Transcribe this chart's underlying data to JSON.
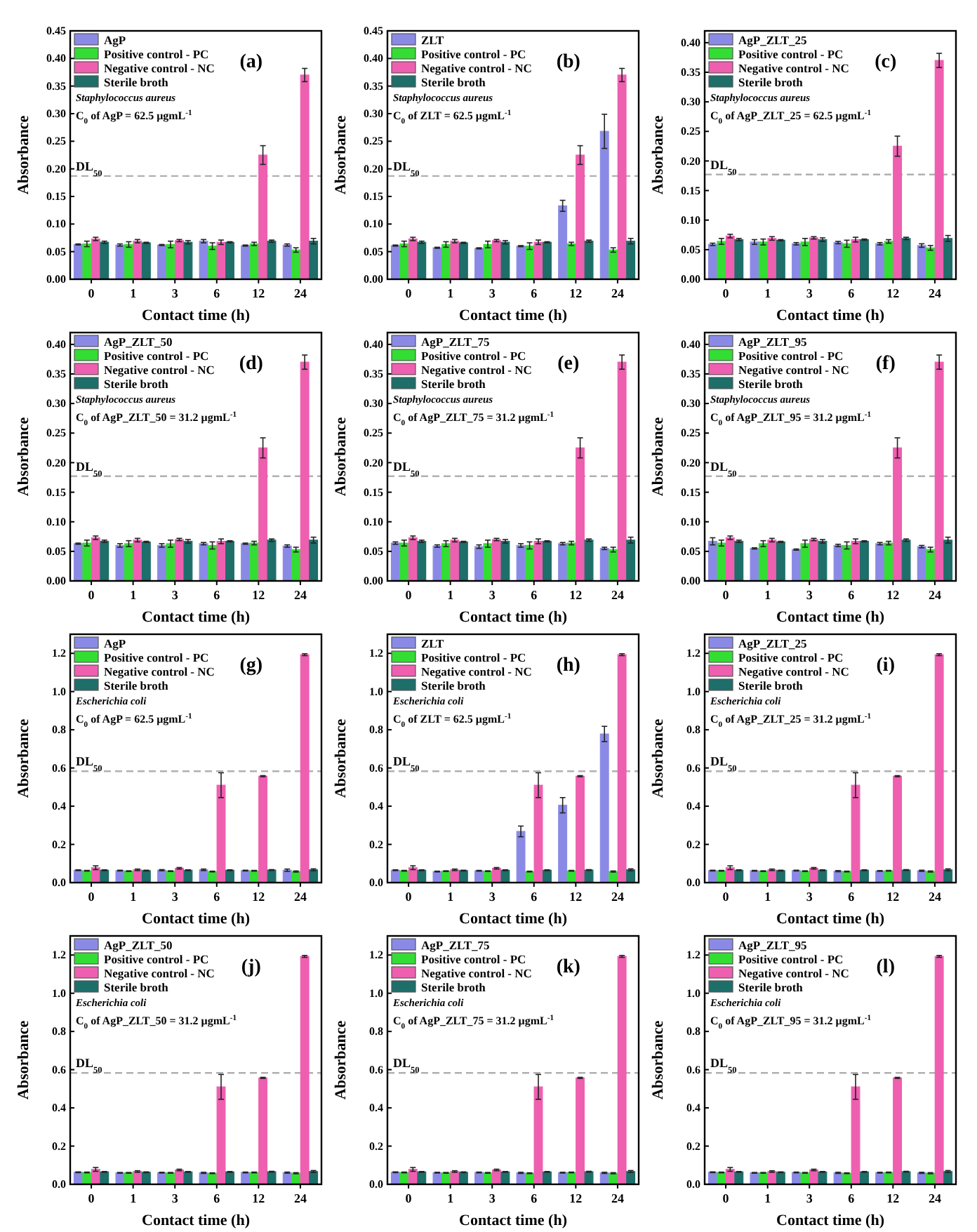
{
  "chart_data": [
    {
      "type": "bar",
      "annotations": [
        "(a)",
        "Staphylococcus aureus",
        "C$_{0}$ of AgP = 62.5 μgmL$^{-1}$"
      ],
      "xlabel": "Contact time (h)",
      "ylabel": "Absorbance",
      "categories": [
        "0",
        "1",
        "3",
        "6",
        "12",
        "24"
      ],
      "ylim": [
        0,
        0.45
      ],
      "yticks": [
        {
          "value": 0,
          "label": "0.00"
        },
        {
          "value": 0.05,
          "label": "0.05"
        },
        {
          "value": 0.1,
          "label": "0.10"
        },
        {
          "value": 0.15,
          "label": "0.15"
        },
        {
          "value": 0.2,
          "label": "0.20"
        },
        {
          "value": 0.25,
          "label": "0.25"
        },
        {
          "value": 0.3,
          "label": "0.30"
        },
        {
          "value": 0.35,
          "label": "0.35"
        },
        {
          "value": 0.4,
          "label": "0.40"
        },
        {
          "value": 0.45,
          "label": "0.45"
        }
      ],
      "legend": "top left",
      "ref_lines": [
        {
          "axis": "y",
          "value": 0.187,
          "label": "DL$_{50}$",
          "color": "#b0b0b0",
          "line_style": "dashed"
        }
      ],
      "series": [
        {
          "name": "AgP",
          "color": "#8a8ae6",
          "values": [
            0.063,
            0.062,
            0.062,
            0.069,
            0.061,
            0.062
          ],
          "errors": [
            0.001,
            0.002,
            0.001,
            0.003,
            0.001,
            0.002
          ]
        },
        {
          "name": "Positive control - PC",
          "color": "#33dd33",
          "values": [
            0.064,
            0.063,
            0.063,
            0.06,
            0.064,
            0.053
          ],
          "errors": [
            0.005,
            0.005,
            0.006,
            0.006,
            0.003,
            0.004
          ]
        },
        {
          "name": "Negative control - NC",
          "color": "#ee5fb0",
          "values": [
            0.073,
            0.069,
            0.07,
            0.067,
            0.225,
            0.37
          ],
          "errors": [
            0.003,
            0.003,
            0.002,
            0.004,
            0.017,
            0.012
          ]
        },
        {
          "name": "Sterile broth",
          "color": "#1e6e6a",
          "values": [
            0.067,
            0.066,
            0.067,
            0.067,
            0.069,
            0.069
          ],
          "errors": [
            0.002,
            0.001,
            0.003,
            0.001,
            0.002,
            0.005
          ]
        }
      ]
    },
    {
      "type": "bar",
      "annotations": [
        "(b)",
        "Staphylococcus aureus",
        "C$_{0}$ of ZLT = 62.5 μgmL$^{-1}$"
      ],
      "xlabel": "Contact time (h)",
      "ylabel": "Absorbance",
      "categories": [
        "0",
        "1",
        "3",
        "6",
        "12",
        "24"
      ],
      "ylim": [
        0,
        0.45
      ],
      "yticks": [
        {
          "value": 0,
          "label": "0.00"
        },
        {
          "value": 0.05,
          "label": "0.05"
        },
        {
          "value": 0.1,
          "label": "0.10"
        },
        {
          "value": 0.15,
          "label": "0.15"
        },
        {
          "value": 0.2,
          "label": "0.20"
        },
        {
          "value": 0.25,
          "label": "0.25"
        },
        {
          "value": 0.3,
          "label": "0.30"
        },
        {
          "value": 0.35,
          "label": "0.35"
        },
        {
          "value": 0.4,
          "label": "0.40"
        },
        {
          "value": 0.45,
          "label": "0.45"
        }
      ],
      "legend": "top left",
      "ref_lines": [
        {
          "axis": "y",
          "value": 0.187,
          "label": "DL$_{50}$",
          "color": "#b0b0b0",
          "line_style": "dashed"
        }
      ],
      "series": [
        {
          "name": "ZLT",
          "color": "#8a8ae6",
          "values": [
            0.061,
            0.057,
            0.056,
            0.06,
            0.133,
            0.268
          ],
          "errors": [
            0.001,
            0.001,
            0.001,
            0.001,
            0.01,
            0.031
          ]
        },
        {
          "name": "Positive control - PC",
          "color": "#33dd33",
          "values": [
            0.064,
            0.063,
            0.063,
            0.06,
            0.064,
            0.053
          ],
          "errors": [
            0.005,
            0.005,
            0.006,
            0.006,
            0.003,
            0.004
          ]
        },
        {
          "name": "Negative control - NC",
          "color": "#ee5fb0",
          "values": [
            0.073,
            0.069,
            0.07,
            0.067,
            0.225,
            0.37
          ],
          "errors": [
            0.003,
            0.003,
            0.002,
            0.004,
            0.017,
            0.012
          ]
        },
        {
          "name": "Sterile broth",
          "color": "#1e6e6a",
          "values": [
            0.067,
            0.066,
            0.067,
            0.067,
            0.069,
            0.069
          ],
          "errors": [
            0.002,
            0.001,
            0.003,
            0.001,
            0.002,
            0.005
          ]
        }
      ]
    },
    {
      "type": "bar",
      "annotations": [
        "(c)",
        "Staphylococcus aureus",
        "C$_{0}$ of AgP_ZLT_25 = 62.5 μgmL$^{-1}$"
      ],
      "xlabel": "Contact time (h)",
      "ylabel": "Absorbance",
      "categories": [
        "0",
        "1",
        "3",
        "6",
        "12",
        "24"
      ],
      "ylim": [
        0,
        0.42
      ],
      "yticks": [
        {
          "value": 0,
          "label": "0.00"
        },
        {
          "value": 0.05,
          "label": "0.05"
        },
        {
          "value": 0.1,
          "label": "0.10"
        },
        {
          "value": 0.15,
          "label": "0.15"
        },
        {
          "value": 0.2,
          "label": "0.20"
        },
        {
          "value": 0.25,
          "label": "0.25"
        },
        {
          "value": 0.3,
          "label": "0.30"
        },
        {
          "value": 0.35,
          "label": "0.35"
        },
        {
          "value": 0.4,
          "label": "0.40"
        }
      ],
      "legend": "top left",
      "ref_lines": [
        {
          "axis": "y",
          "value": 0.177,
          "label": "DL$_{50}$",
          "color": "#b0b0b0",
          "line_style": "dashed"
        }
      ],
      "series": [
        {
          "name": "AgP_ZLT_25",
          "color": "#8a8ae6",
          "values": [
            0.059,
            0.063,
            0.06,
            0.062,
            0.06,
            0.057
          ],
          "errors": [
            0.002,
            0.004,
            0.002,
            0.002,
            0.002,
            0.003
          ]
        },
        {
          "name": "Positive control - PC",
          "color": "#33dd33",
          "values": [
            0.064,
            0.063,
            0.063,
            0.06,
            0.064,
            0.053
          ],
          "errors": [
            0.005,
            0.005,
            0.006,
            0.006,
            0.003,
            0.004
          ]
        },
        {
          "name": "Negative control - NC",
          "color": "#ee5fb0",
          "values": [
            0.073,
            0.069,
            0.07,
            0.067,
            0.225,
            0.37
          ],
          "errors": [
            0.003,
            0.003,
            0.002,
            0.004,
            0.017,
            0.012
          ]
        },
        {
          "name": "Sterile broth",
          "color": "#1e6e6a",
          "values": [
            0.067,
            0.066,
            0.067,
            0.067,
            0.069,
            0.069
          ],
          "errors": [
            0.002,
            0.001,
            0.003,
            0.001,
            0.002,
            0.005
          ]
        }
      ]
    },
    {
      "type": "bar",
      "annotations": [
        "(d)",
        "Staphylococcus aureus",
        "C$_{0}$ of AgP_ZLT_50 = 31.2 μgmL$^{-1}$"
      ],
      "xlabel": "Contact time (h)",
      "ylabel": "Absorbance",
      "categories": [
        "0",
        "1",
        "3",
        "6",
        "12",
        "24"
      ],
      "ylim": [
        0,
        0.42
      ],
      "yticks": [
        {
          "value": 0,
          "label": "0.00"
        },
        {
          "value": 0.05,
          "label": "0.05"
        },
        {
          "value": 0.1,
          "label": "0.10"
        },
        {
          "value": 0.15,
          "label": "0.15"
        },
        {
          "value": 0.2,
          "label": "0.20"
        },
        {
          "value": 0.25,
          "label": "0.25"
        },
        {
          "value": 0.3,
          "label": "0.30"
        },
        {
          "value": 0.35,
          "label": "0.35"
        },
        {
          "value": 0.4,
          "label": "0.40"
        }
      ],
      "legend": "top left",
      "ref_lines": [
        {
          "axis": "y",
          "value": 0.177,
          "label": "DL$_{50}$",
          "color": "#b0b0b0",
          "line_style": "dashed"
        }
      ],
      "series": [
        {
          "name": "AgP_ZLT_50",
          "color": "#8a8ae6",
          "values": [
            0.063,
            0.06,
            0.06,
            0.063,
            0.063,
            0.059
          ],
          "errors": [
            0.001,
            0.003,
            0.003,
            0.002,
            0.001,
            0.002
          ]
        },
        {
          "name": "Positive control - PC",
          "color": "#33dd33",
          "values": [
            0.064,
            0.063,
            0.063,
            0.06,
            0.064,
            0.053
          ],
          "errors": [
            0.005,
            0.005,
            0.006,
            0.006,
            0.003,
            0.004
          ]
        },
        {
          "name": "Negative control - NC",
          "color": "#ee5fb0",
          "values": [
            0.073,
            0.069,
            0.07,
            0.067,
            0.225,
            0.37
          ],
          "errors": [
            0.003,
            0.003,
            0.002,
            0.004,
            0.017,
            0.012
          ]
        },
        {
          "name": "Sterile broth",
          "color": "#1e6e6a",
          "values": [
            0.067,
            0.066,
            0.067,
            0.067,
            0.069,
            0.069
          ],
          "errors": [
            0.002,
            0.001,
            0.003,
            0.001,
            0.002,
            0.005
          ]
        }
      ]
    },
    {
      "type": "bar",
      "annotations": [
        "(e)",
        "Staphylococcus aureus",
        "C$_{0}$ of AgP_ZLT_75 = 31.2 μgmL$^{-1}$"
      ],
      "xlabel": "Contact time (h)",
      "ylabel": "Absorbance",
      "categories": [
        "0",
        "1",
        "3",
        "6",
        "12",
        "24"
      ],
      "ylim": [
        0,
        0.42
      ],
      "yticks": [
        {
          "value": 0,
          "label": "0.00"
        },
        {
          "value": 0.05,
          "label": "0.05"
        },
        {
          "value": 0.1,
          "label": "0.10"
        },
        {
          "value": 0.15,
          "label": "0.15"
        },
        {
          "value": 0.2,
          "label": "0.20"
        },
        {
          "value": 0.25,
          "label": "0.25"
        },
        {
          "value": 0.3,
          "label": "0.30"
        },
        {
          "value": 0.35,
          "label": "0.35"
        },
        {
          "value": 0.4,
          "label": "0.40"
        }
      ],
      "legend": "top left",
      "ref_lines": [
        {
          "axis": "y",
          "value": 0.177,
          "label": "DL$_{50}$",
          "color": "#b0b0b0",
          "line_style": "dashed"
        }
      ],
      "series": [
        {
          "name": "AgP_ZLT_75",
          "color": "#8a8ae6",
          "values": [
            0.064,
            0.059,
            0.058,
            0.06,
            0.063,
            0.055
          ],
          "errors": [
            0.002,
            0.002,
            0.003,
            0.003,
            0.002,
            0.002
          ]
        },
        {
          "name": "Positive control - PC",
          "color": "#33dd33",
          "values": [
            0.064,
            0.063,
            0.063,
            0.06,
            0.064,
            0.053
          ],
          "errors": [
            0.005,
            0.005,
            0.006,
            0.006,
            0.003,
            0.004
          ]
        },
        {
          "name": "Negative control - NC",
          "color": "#ee5fb0",
          "values": [
            0.073,
            0.069,
            0.07,
            0.067,
            0.225,
            0.37
          ],
          "errors": [
            0.003,
            0.003,
            0.002,
            0.004,
            0.017,
            0.012
          ]
        },
        {
          "name": "Sterile broth",
          "color": "#1e6e6a",
          "values": [
            0.067,
            0.066,
            0.067,
            0.067,
            0.069,
            0.069
          ],
          "errors": [
            0.002,
            0.001,
            0.003,
            0.001,
            0.002,
            0.005
          ]
        }
      ]
    },
    {
      "type": "bar",
      "annotations": [
        "(f)",
        "Staphylococcus aureus",
        "C$_{0}$ of AgP_ZLT_95 = 31.2 μgmL$^{-1}$"
      ],
      "xlabel": "Contact time (h)",
      "ylabel": "Absorbance",
      "categories": [
        "0",
        "1",
        "3",
        "6",
        "12",
        "24"
      ],
      "ylim": [
        0,
        0.42
      ],
      "yticks": [
        {
          "value": 0,
          "label": "0.00"
        },
        {
          "value": 0.05,
          "label": "0.05"
        },
        {
          "value": 0.1,
          "label": "0.10"
        },
        {
          "value": 0.15,
          "label": "0.15"
        },
        {
          "value": 0.2,
          "label": "0.20"
        },
        {
          "value": 0.25,
          "label": "0.25"
        },
        {
          "value": 0.3,
          "label": "0.30"
        },
        {
          "value": 0.35,
          "label": "0.35"
        },
        {
          "value": 0.4,
          "label": "0.40"
        }
      ],
      "legend": "top left",
      "ref_lines": [
        {
          "axis": "y",
          "value": 0.177,
          "label": "DL$_{50}$",
          "color": "#b0b0b0",
          "line_style": "dashed"
        }
      ],
      "series": [
        {
          "name": "AgP_ZLT_95",
          "color": "#8a8ae6",
          "values": [
            0.067,
            0.055,
            0.053,
            0.06,
            0.063,
            0.058
          ],
          "errors": [
            0.006,
            0.001,
            0.001,
            0.002,
            0.002,
            0.002
          ]
        },
        {
          "name": "Positive control - PC",
          "color": "#33dd33",
          "values": [
            0.064,
            0.063,
            0.063,
            0.06,
            0.064,
            0.053
          ],
          "errors": [
            0.005,
            0.005,
            0.006,
            0.006,
            0.003,
            0.004
          ]
        },
        {
          "name": "Negative control - NC",
          "color": "#ee5fb0",
          "values": [
            0.073,
            0.069,
            0.07,
            0.067,
            0.225,
            0.37
          ],
          "errors": [
            0.003,
            0.003,
            0.002,
            0.004,
            0.017,
            0.012
          ]
        },
        {
          "name": "Sterile broth",
          "color": "#1e6e6a",
          "values": [
            0.067,
            0.066,
            0.067,
            0.067,
            0.069,
            0.069
          ],
          "errors": [
            0.002,
            0.001,
            0.003,
            0.001,
            0.002,
            0.005
          ]
        }
      ]
    },
    {
      "type": "bar",
      "annotations": [
        "(g)",
        "Escherichia coli",
        "C$_{0}$ of AgP = 62.5 μgmL$^{-1}$"
      ],
      "xlabel": "Contact time (h)",
      "ylabel": "Absorbance",
      "categories": [
        "0",
        "1",
        "3",
        "6",
        "12",
        "24"
      ],
      "ylim": [
        0,
        1.3
      ],
      "yticks": [
        {
          "value": 0,
          "label": "0.0"
        },
        0.2,
        0.4,
        0.6,
        0.8,
        {
          "value": 1,
          "label": "1.0"
        },
        1.2
      ],
      "legend": "top left",
      "ref_lines": [
        {
          "axis": "y",
          "value": 0.583,
          "label": "DL$_{50}$",
          "color": "#b0b0b0",
          "line_style": "dashed"
        }
      ],
      "series": [
        {
          "name": "AgP",
          "color": "#8a8ae6",
          "values": [
            0.065,
            0.063,
            0.065,
            0.067,
            0.063,
            0.065
          ],
          "errors": [
            0.002,
            0.002,
            0.003,
            0.004,
            0.002,
            0.006
          ]
        },
        {
          "name": "Positive control - PC",
          "color": "#33dd33",
          "values": [
            0.062,
            0.06,
            0.06,
            0.058,
            0.062,
            0.058
          ],
          "errors": [
            0.002,
            0.002,
            0.002,
            0.002,
            0.002,
            0.003
          ]
        },
        {
          "name": "Negative control - NC",
          "color": "#ee5fb0",
          "values": [
            0.078,
            0.067,
            0.075,
            0.51,
            0.557,
            1.193
          ],
          "errors": [
            0.01,
            0.004,
            0.004,
            0.065,
            0.003,
            0.005
          ]
        },
        {
          "name": "Sterile broth",
          "color": "#1e6e6a",
          "values": [
            0.065,
            0.063,
            0.065,
            0.065,
            0.066,
            0.067
          ],
          "errors": [
            0.002,
            0.002,
            0.002,
            0.002,
            0.002,
            0.005
          ]
        }
      ]
    },
    {
      "type": "bar",
      "annotations": [
        "(h)",
        "Escherichia coli",
        "C$_{0}$ of ZLT = 62.5 μgmL$^{-1}$"
      ],
      "xlabel": "Contact time (h)",
      "ylabel": "Absorbance",
      "categories": [
        "0",
        "1",
        "3",
        "6",
        "12",
        "24"
      ],
      "ylim": [
        0,
        1.3
      ],
      "yticks": [
        {
          "value": 0,
          "label": "0.0"
        },
        0.2,
        0.4,
        0.6,
        0.8,
        {
          "value": 1,
          "label": "1.0"
        },
        1.2
      ],
      "legend": "top left",
      "ref_lines": [
        {
          "axis": "y",
          "value": 0.583,
          "label": "DL$_{50}$",
          "color": "#b0b0b0",
          "line_style": "dashed"
        }
      ],
      "series": [
        {
          "name": "ZLT",
          "color": "#8a8ae6",
          "values": [
            0.065,
            0.058,
            0.062,
            0.268,
            0.405,
            0.778
          ],
          "errors": [
            0.002,
            0.002,
            0.002,
            0.028,
            0.04,
            0.04
          ]
        },
        {
          "name": "Positive control - PC",
          "color": "#33dd33",
          "values": [
            0.062,
            0.06,
            0.06,
            0.058,
            0.062,
            0.058
          ],
          "errors": [
            0.002,
            0.002,
            0.002,
            0.002,
            0.002,
            0.003
          ]
        },
        {
          "name": "Negative control - NC",
          "color": "#ee5fb0",
          "values": [
            0.078,
            0.067,
            0.075,
            0.51,
            0.557,
            1.193
          ],
          "errors": [
            0.01,
            0.004,
            0.004,
            0.065,
            0.003,
            0.005
          ]
        },
        {
          "name": "Sterile broth",
          "color": "#1e6e6a",
          "values": [
            0.065,
            0.063,
            0.065,
            0.065,
            0.066,
            0.067
          ],
          "errors": [
            0.002,
            0.002,
            0.002,
            0.002,
            0.002,
            0.005
          ]
        }
      ]
    },
    {
      "type": "bar",
      "annotations": [
        "(i)",
        "Escherichia coli",
        "C$_{0}$ of AgP_ZLT_25 = 31.2 μgmL$^{-1}$"
      ],
      "xlabel": "Contact time (h)",
      "ylabel": "Absorbance",
      "categories": [
        "0",
        "1",
        "3",
        "6",
        "12",
        "24"
      ],
      "ylim": [
        0,
        1.3
      ],
      "yticks": [
        {
          "value": 0,
          "label": "0.0"
        },
        0.2,
        0.4,
        0.6,
        0.8,
        {
          "value": 1,
          "label": "1.0"
        },
        1.2
      ],
      "legend": "top left",
      "ref_lines": [
        {
          "axis": "y",
          "value": 0.583,
          "label": "DL$_{50}$",
          "color": "#b0b0b0",
          "line_style": "dashed"
        }
      ],
      "series": [
        {
          "name": "AgP_ZLT_25",
          "color": "#8a8ae6",
          "values": [
            0.063,
            0.062,
            0.063,
            0.06,
            0.061,
            0.062
          ],
          "errors": [
            0.002,
            0.002,
            0.002,
            0.003,
            0.002,
            0.003
          ]
        },
        {
          "name": "Positive control - PC",
          "color": "#33dd33",
          "values": [
            0.062,
            0.06,
            0.06,
            0.058,
            0.062,
            0.058
          ],
          "errors": [
            0.002,
            0.002,
            0.002,
            0.002,
            0.002,
            0.003
          ]
        },
        {
          "name": "Negative control - NC",
          "color": "#ee5fb0",
          "values": [
            0.078,
            0.067,
            0.075,
            0.51,
            0.557,
            1.193
          ],
          "errors": [
            0.01,
            0.004,
            0.004,
            0.065,
            0.003,
            0.005
          ]
        },
        {
          "name": "Sterile broth",
          "color": "#1e6e6a",
          "values": [
            0.065,
            0.063,
            0.065,
            0.065,
            0.066,
            0.067
          ],
          "errors": [
            0.002,
            0.002,
            0.002,
            0.002,
            0.002,
            0.005
          ]
        }
      ]
    },
    {
      "type": "bar",
      "annotations": [
        "(j)",
        "Escherichia coli",
        "C$_{0}$ of AgP_ZLT_50 = 31.2 μgmL$^{-1}$"
      ],
      "xlabel": "Contact time (h)",
      "ylabel": "Absorbance",
      "categories": [
        "0",
        "1",
        "3",
        "6",
        "12",
        "24"
      ],
      "ylim": [
        0,
        1.3
      ],
      "yticks": [
        {
          "value": 0,
          "label": "0.0"
        },
        0.2,
        0.4,
        0.6,
        0.8,
        {
          "value": 1,
          "label": "1.0"
        },
        1.2
      ],
      "legend": "top left",
      "ref_lines": [
        {
          "axis": "y",
          "value": 0.583,
          "label": "DL$_{50}$",
          "color": "#b0b0b0",
          "line_style": "dashed"
        }
      ],
      "series": [
        {
          "name": "AgP_ZLT_50",
          "color": "#8a8ae6",
          "values": [
            0.063,
            0.06,
            0.061,
            0.06,
            0.062,
            0.061
          ],
          "errors": [
            0.002,
            0.002,
            0.002,
            0.003,
            0.002,
            0.003
          ]
        },
        {
          "name": "Positive control - PC",
          "color": "#33dd33",
          "values": [
            0.062,
            0.06,
            0.06,
            0.058,
            0.062,
            0.058
          ],
          "errors": [
            0.002,
            0.002,
            0.002,
            0.002,
            0.002,
            0.003
          ]
        },
        {
          "name": "Negative control - NC",
          "color": "#ee5fb0",
          "values": [
            0.078,
            0.067,
            0.075,
            0.51,
            0.557,
            1.193
          ],
          "errors": [
            0.01,
            0.004,
            0.004,
            0.065,
            0.003,
            0.005
          ]
        },
        {
          "name": "Sterile broth",
          "color": "#1e6e6a",
          "values": [
            0.065,
            0.063,
            0.065,
            0.065,
            0.066,
            0.067
          ],
          "errors": [
            0.002,
            0.002,
            0.002,
            0.002,
            0.002,
            0.005
          ]
        }
      ]
    },
    {
      "type": "bar",
      "annotations": [
        "(k)",
        "Escherichia coli",
        "C$_{0}$ of AgP_ZLT_75 = 31.2 μgmL$^{-1}$"
      ],
      "xlabel": "Contact time (h)",
      "ylabel": "Absorbance",
      "categories": [
        "0",
        "1",
        "3",
        "6",
        "12",
        "24"
      ],
      "ylim": [
        0,
        1.3
      ],
      "yticks": [
        {
          "value": 0,
          "label": "0.0"
        },
        0.2,
        0.4,
        0.6,
        0.8,
        {
          "value": 1,
          "label": "1.0"
        },
        1.2
      ],
      "legend": "top left",
      "ref_lines": [
        {
          "axis": "y",
          "value": 0.583,
          "label": "DL$_{50}$",
          "color": "#b0b0b0",
          "line_style": "dashed"
        }
      ],
      "series": [
        {
          "name": "AgP_ZLT_75",
          "color": "#8a8ae6",
          "values": [
            0.063,
            0.061,
            0.062,
            0.06,
            0.061,
            0.06
          ],
          "errors": [
            0.002,
            0.002,
            0.002,
            0.003,
            0.002,
            0.003
          ]
        },
        {
          "name": "Positive control - PC",
          "color": "#33dd33",
          "values": [
            0.062,
            0.06,
            0.06,
            0.058,
            0.062,
            0.058
          ],
          "errors": [
            0.002,
            0.002,
            0.002,
            0.002,
            0.002,
            0.003
          ]
        },
        {
          "name": "Negative control - NC",
          "color": "#ee5fb0",
          "values": [
            0.078,
            0.067,
            0.075,
            0.51,
            0.557,
            1.193
          ],
          "errors": [
            0.01,
            0.004,
            0.004,
            0.065,
            0.003,
            0.005
          ]
        },
        {
          "name": "Sterile broth",
          "color": "#1e6e6a",
          "values": [
            0.065,
            0.063,
            0.065,
            0.065,
            0.066,
            0.067
          ],
          "errors": [
            0.002,
            0.002,
            0.002,
            0.002,
            0.002,
            0.005
          ]
        }
      ]
    },
    {
      "type": "bar",
      "annotations": [
        "(l)",
        "Escherichia coli",
        "C$_{0}$ of AgP_ZLT_95 = 31.2 μgmL$^{-1}$"
      ],
      "xlabel": "Contact time (h)",
      "ylabel": "Absorbance",
      "categories": [
        "0",
        "1",
        "3",
        "6",
        "12",
        "24"
      ],
      "ylim": [
        0,
        1.3
      ],
      "yticks": [
        {
          "value": 0,
          "label": "0.0"
        },
        0.2,
        0.4,
        0.6,
        0.8,
        {
          "value": 1,
          "label": "1.0"
        },
        1.2
      ],
      "legend": "top left",
      "ref_lines": [
        {
          "axis": "y",
          "value": 0.583,
          "label": "DL$_{50}$",
          "color": "#b0b0b0",
          "line_style": "dashed"
        }
      ],
      "series": [
        {
          "name": "AgP_ZLT_95",
          "color": "#8a8ae6",
          "values": [
            0.063,
            0.06,
            0.062,
            0.06,
            0.061,
            0.06
          ],
          "errors": [
            0.002,
            0.002,
            0.002,
            0.003,
            0.002,
            0.003
          ]
        },
        {
          "name": "Positive control - PC",
          "color": "#33dd33",
          "values": [
            0.062,
            0.06,
            0.06,
            0.058,
            0.062,
            0.058
          ],
          "errors": [
            0.002,
            0.002,
            0.002,
            0.002,
            0.002,
            0.003
          ]
        },
        {
          "name": "Negative control - NC",
          "color": "#ee5fb0",
          "values": [
            0.078,
            0.067,
            0.075,
            0.51,
            0.557,
            1.193
          ],
          "errors": [
            0.01,
            0.004,
            0.004,
            0.065,
            0.003,
            0.005
          ]
        },
        {
          "name": "Sterile broth",
          "color": "#1e6e6a",
          "values": [
            0.065,
            0.063,
            0.065,
            0.065,
            0.066,
            0.067
          ],
          "errors": [
            0.002,
            0.002,
            0.002,
            0.002,
            0.002,
            0.005
          ]
        }
      ]
    }
  ]
}
